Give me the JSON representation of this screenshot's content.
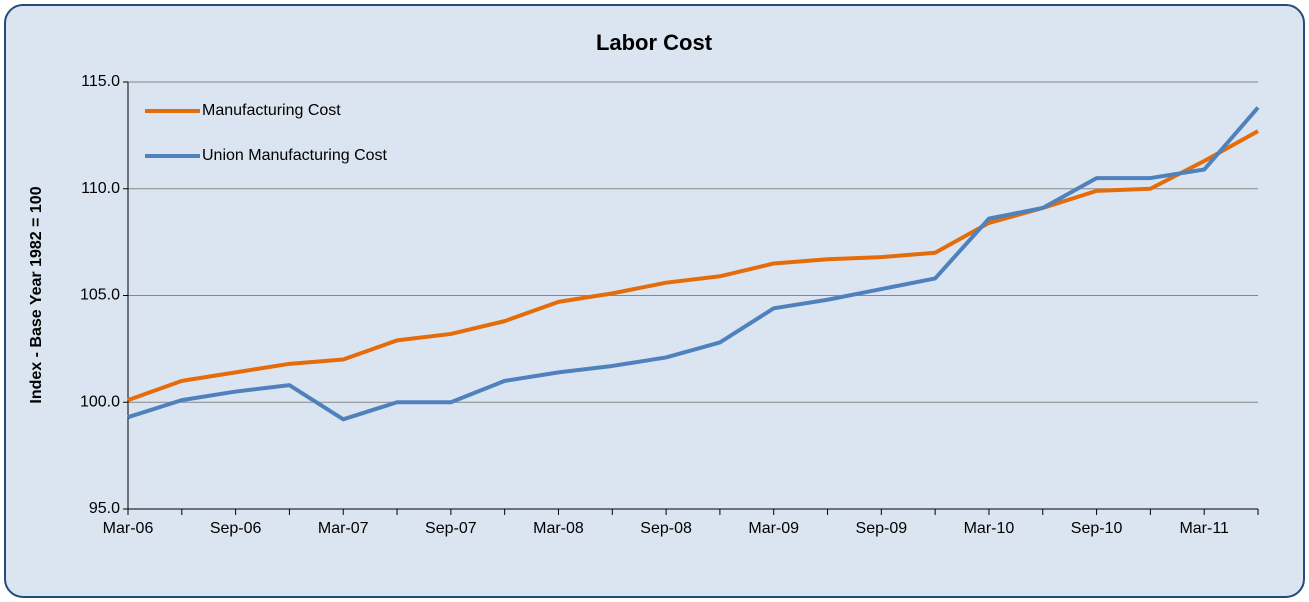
{
  "chart_data": {
    "type": "line",
    "title": "Labor Cost",
    "y_label": "Index - Base Year 1982 = 100",
    "categories": [
      "Mar-06",
      null,
      "Sep-06",
      null,
      "Mar-07",
      null,
      "Sep-07",
      null,
      "Mar-08",
      null,
      "Sep-08",
      null,
      "Mar-09",
      null,
      "Sep-09",
      null,
      "Mar-10",
      null,
      "Sep-10",
      null,
      "Mar-11",
      null
    ],
    "series": [
      {
        "name": "Manufacturing Cost",
        "color": "#e46c0a",
        "values": [
          100.1,
          101.0,
          101.4,
          101.8,
          102.0,
          102.9,
          103.2,
          103.8,
          104.7,
          105.1,
          105.6,
          105.9,
          106.5,
          106.7,
          106.8,
          107.0,
          108.4,
          109.1,
          109.9,
          110.0,
          111.3,
          112.7
        ]
      },
      {
        "name": "Union Manufacturing Cost",
        "color": "#4f81bd",
        "values": [
          99.3,
          100.1,
          100.5,
          100.8,
          99.2,
          100.0,
          100.0,
          101.0,
          101.4,
          101.7,
          102.1,
          102.8,
          104.4,
          104.8,
          105.3,
          105.8,
          108.6,
          109.1,
          110.5,
          110.5,
          110.9,
          113.8
        ]
      }
    ],
    "ylim": [
      95,
      115
    ],
    "yticks": [
      {
        "value": 95,
        "label": "95.0"
      },
      {
        "value": 100,
        "label": "100.0"
      },
      {
        "value": 105,
        "label": "105.0"
      },
      {
        "value": 110,
        "label": "110.0"
      },
      {
        "value": 115,
        "label": "115.0"
      }
    ],
    "grid": true,
    "legend": "top-left"
  }
}
